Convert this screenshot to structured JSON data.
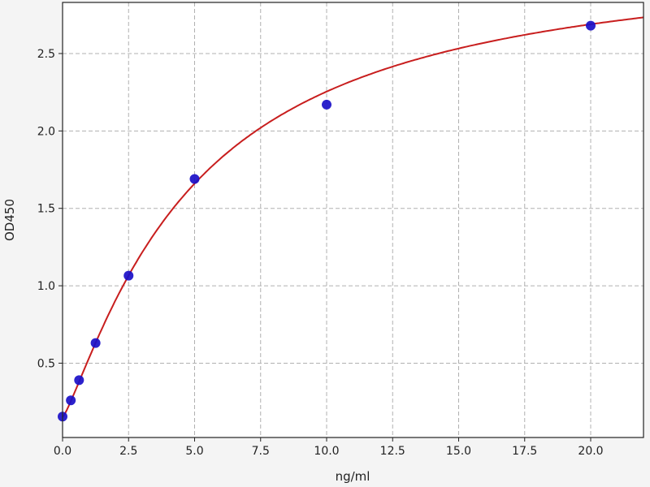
{
  "chart_data": {
    "type": "scatter",
    "title": "",
    "xlabel": "ng/ml",
    "ylabel": "OD450",
    "xlim": [
      0,
      22
    ],
    "ylim": [
      0.02,
      2.83
    ],
    "grid": true,
    "xticks": [
      "0.0",
      "2.5",
      "5.0",
      "7.5",
      "10.0",
      "12.5",
      "15.0",
      "17.5",
      "20.0"
    ],
    "yticks": [
      "0.5",
      "1.0",
      "1.5",
      "2.0",
      "2.5"
    ],
    "points": [
      {
        "x": 0,
        "y": 0.155
      },
      {
        "x": 0.3125,
        "y": 0.26
      },
      {
        "x": 0.625,
        "y": 0.39
      },
      {
        "x": 1.25,
        "y": 0.63
      },
      {
        "x": 2.5,
        "y": 1.065
      },
      {
        "x": 5,
        "y": 1.69
      },
      {
        "x": 10,
        "y": 2.17
      },
      {
        "x": 20,
        "y": 2.68
      }
    ],
    "fit_curve": {
      "model": "4PL",
      "a": 0.15,
      "b": 1.2,
      "c": 5.0,
      "d": 3.17
    },
    "colors": {
      "points": "#1a0fc8",
      "curve": "#c81e1e",
      "grid": "#b0b0b0",
      "background": "#ffffff"
    }
  }
}
